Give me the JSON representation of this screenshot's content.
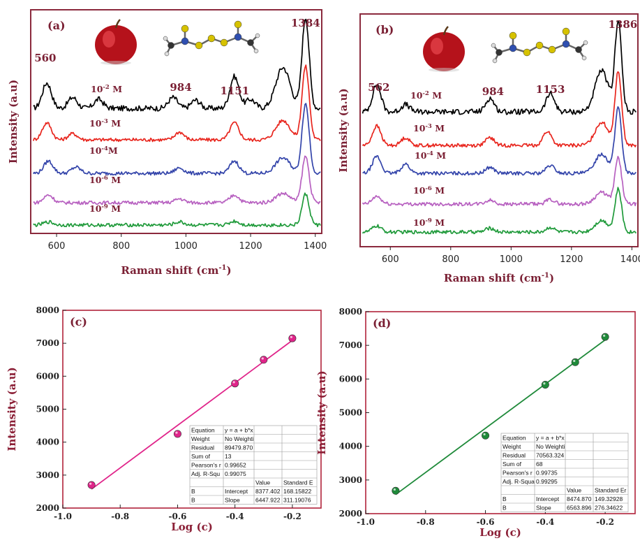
{
  "chart_data": [
    {
      "panel": "(a)",
      "type": "line",
      "xlabel": "Raman shift (cm-1)",
      "ylabel": "Intensity (a.u)",
      "xlim": [
        520,
        1420
      ],
      "xticks": [
        "600",
        "800",
        "1000",
        "1200",
        "1400"
      ],
      "xtick_values": [
        600,
        800,
        1000,
        1200,
        1400
      ],
      "peak_labels": [
        {
          "text": "560",
          "x": 565
        },
        {
          "text": "984",
          "x": 984
        },
        {
          "text": "1151",
          "x": 1151
        },
        {
          "text": "1384",
          "x": 1370
        }
      ],
      "series": [
        {
          "name": "10-2 M",
          "label_base": "10",
          "label_exp": "-2",
          "label_unit": " M",
          "color": "#000000",
          "peaks": [
            [
              570,
              0.28
            ],
            [
              650,
              0.12
            ],
            [
              730,
              0.1
            ],
            [
              960,
              0.12
            ],
            [
              1030,
              0.09
            ],
            [
              1150,
              0.35
            ],
            [
              1200,
              0.1
            ],
            [
              1300,
              0.45
            ],
            [
              1370,
              1.0
            ]
          ]
        },
        {
          "name": "10-3 M",
          "label_base": "10",
          "label_exp": "-3",
          "label_unit": " M",
          "color": "#e8251d",
          "peaks": [
            [
              570,
              0.22
            ],
            [
              650,
              0.08
            ],
            [
              980,
              0.1
            ],
            [
              1150,
              0.22
            ],
            [
              1300,
              0.25
            ],
            [
              1370,
              0.95
            ]
          ]
        },
        {
          "name": "10-4M",
          "label_base": "10",
          "label_exp": "-4",
          "label_unit": "M",
          "color": "#3344aa",
          "peaks": [
            [
              575,
              0.16
            ],
            [
              660,
              0.08
            ],
            [
              980,
              0.07
            ],
            [
              1150,
              0.16
            ],
            [
              1300,
              0.2
            ],
            [
              1370,
              0.9
            ]
          ]
        },
        {
          "name": "10-6 M",
          "label_base": "10",
          "label_exp": "-6",
          "label_unit": " M",
          "color": "#b760c0",
          "peaks": [
            [
              575,
              0.1
            ],
            [
              980,
              0.05
            ],
            [
              1150,
              0.1
            ],
            [
              1300,
              0.12
            ],
            [
              1370,
              0.6
            ]
          ]
        },
        {
          "name": "10-9 M",
          "label_base": "10",
          "label_exp": "-9",
          "label_unit": " M",
          "color": "#1f9a3a",
          "peaks": [
            [
              575,
              0.04
            ],
            [
              980,
              0.04
            ],
            [
              1150,
              0.05
            ],
            [
              1370,
              0.4
            ]
          ]
        }
      ]
    },
    {
      "panel": "(b)",
      "type": "line",
      "xlabel": "Raman shift (cm-1)",
      "ylabel": "Intensity (a.u)",
      "xlim": [
        500,
        1420
      ],
      "xticks": [
        "600",
        "800",
        "1000",
        "1200",
        "1400"
      ],
      "xtick_values": [
        600,
        800,
        1000,
        1200,
        1400
      ],
      "peak_labels": [
        {
          "text": "562",
          "x": 562
        },
        {
          "text": "984",
          "x": 940
        },
        {
          "text": "1153",
          "x": 1130
        },
        {
          "text": "1386",
          "x": 1370
        }
      ],
      "series": [
        {
          "name": "10-2 M",
          "label_base": "10",
          "label_exp": "-2",
          "label_unit": " M",
          "color": "#000000",
          "peaks": [
            [
              555,
              0.3
            ],
            [
              650,
              0.08
            ],
            [
              930,
              0.15
            ],
            [
              1130,
              0.2
            ],
            [
              1300,
              0.45
            ],
            [
              1355,
              1.0
            ]
          ]
        },
        {
          "name": "10-3 M",
          "label_base": "10",
          "label_exp": "-3",
          "label_unit": " M",
          "color": "#e8251d",
          "peaks": [
            [
              555,
              0.25
            ],
            [
              650,
              0.1
            ],
            [
              930,
              0.1
            ],
            [
              1120,
              0.18
            ],
            [
              1300,
              0.3
            ],
            [
              1355,
              0.95
            ]
          ]
        },
        {
          "name": "10-4 M",
          "label_base": "10",
          "label_exp": "-4",
          "label_unit": " M",
          "color": "#3344aa",
          "peaks": [
            [
              555,
              0.22
            ],
            [
              650,
              0.12
            ],
            [
              930,
              0.08
            ],
            [
              1130,
              0.1
            ],
            [
              1300,
              0.25
            ],
            [
              1355,
              0.85
            ]
          ]
        },
        {
          "name": "10-6 M",
          "label_base": "10",
          "label_exp": "-6",
          "label_unit": " M",
          "color": "#b760c0",
          "peaks": [
            [
              555,
              0.1
            ],
            [
              930,
              0.05
            ],
            [
              1130,
              0.06
            ],
            [
              1300,
              0.15
            ],
            [
              1355,
              0.6
            ]
          ]
        },
        {
          "name": "10-9 M",
          "label_base": "10",
          "label_exp": "-9",
          "label_unit": " M",
          "color": "#1f9a3a",
          "peaks": [
            [
              555,
              0.08
            ],
            [
              930,
              0.05
            ],
            [
              1130,
              0.06
            ],
            [
              1300,
              0.15
            ],
            [
              1355,
              0.55
            ]
          ]
        }
      ]
    },
    {
      "panel": "(c)",
      "type": "scatter",
      "xlabel": "Log (c)",
      "ylabel": "Intensity (a.u)",
      "xlim": [
        -1.0,
        -0.1
      ],
      "ylim": [
        2000,
        8000
      ],
      "xticks": [
        "-1.0",
        "-0.8",
        "-0.6",
        "-0.4",
        "-0.2"
      ],
      "xtick_values": [
        -1.0,
        -0.8,
        -0.6,
        -0.4,
        -0.2
      ],
      "yticks": [
        "2000",
        "3000",
        "4000",
        "5000",
        "6000",
        "7000",
        "8000"
      ],
      "ytick_values": [
        2000,
        3000,
        4000,
        5000,
        6000,
        7000,
        8000
      ],
      "color": "#e0248a",
      "points": [
        {
          "x": -0.9,
          "y": 2700
        },
        {
          "x": -0.6,
          "y": 4250
        },
        {
          "x": -0.4,
          "y": 5780
        },
        {
          "x": -0.3,
          "y": 6500
        },
        {
          "x": -0.2,
          "y": 7150
        }
      ],
      "fit": {
        "intercept": 8377.402,
        "slope": 6447.922
      },
      "fit_table": [
        [
          "Equation",
          "y = a + b*x",
          "",
          ""
        ],
        [
          "Weight",
          "No Weighti",
          "",
          ""
        ],
        [
          "Residual",
          "89479.870",
          "",
          ""
        ],
        [
          "Sum of",
          "13",
          "",
          ""
        ],
        [
          "Pearson's r",
          "0.99652",
          "",
          ""
        ],
        [
          "Adj. R-Squ",
          "0.99075",
          "",
          ""
        ],
        [
          "",
          "",
          "Value",
          "Standard E"
        ],
        [
          "B",
          "Intercept",
          "8377.402",
          "168.15822"
        ],
        [
          "B",
          "Slope",
          "6447.922",
          "311.19076"
        ]
      ]
    },
    {
      "panel": "(d)",
      "type": "scatter",
      "xlabel": "Log (c)",
      "ylabel": "Intensity (a.u)",
      "xlim": [
        -1.0,
        -0.1
      ],
      "ylim": [
        2000,
        8000
      ],
      "xticks": [
        "-1.0",
        "-0.8",
        "-0.6",
        "-0.4",
        "-0.2"
      ],
      "xtick_values": [
        -1.0,
        -0.8,
        -0.6,
        -0.4,
        -0.2
      ],
      "yticks": [
        "2000",
        "3000",
        "4000",
        "5000",
        "6000",
        "7000",
        "8000"
      ],
      "ytick_values": [
        2000,
        3000,
        4000,
        5000,
        6000,
        7000,
        8000
      ],
      "color": "#1f8a3a",
      "points": [
        {
          "x": -0.9,
          "y": 2680
        },
        {
          "x": -0.6,
          "y": 4320
        },
        {
          "x": -0.4,
          "y": 5830
        },
        {
          "x": -0.3,
          "y": 6500
        },
        {
          "x": -0.2,
          "y": 7250
        }
      ],
      "fit": {
        "intercept": 8474.87,
        "slope": 6563.896
      },
      "fit_table": [
        [
          "Equation",
          "y = a + b*x",
          "",
          ""
        ],
        [
          "Weight",
          "No Weighti",
          "",
          ""
        ],
        [
          "Residual",
          "70563.324",
          "",
          ""
        ],
        [
          "Sum of",
          "68",
          "",
          ""
        ],
        [
          "Pearson's r",
          "0.99735",
          "",
          ""
        ],
        [
          "Adj. R-Squa",
          "0.99295",
          "",
          ""
        ],
        [
          "",
          "",
          "Value",
          "Standard Er"
        ],
        [
          "B",
          "Intercept",
          "8474.870",
          "149.32928"
        ],
        [
          "B",
          "Slope",
          "6563.896",
          "276.34622"
        ]
      ]
    }
  ]
}
